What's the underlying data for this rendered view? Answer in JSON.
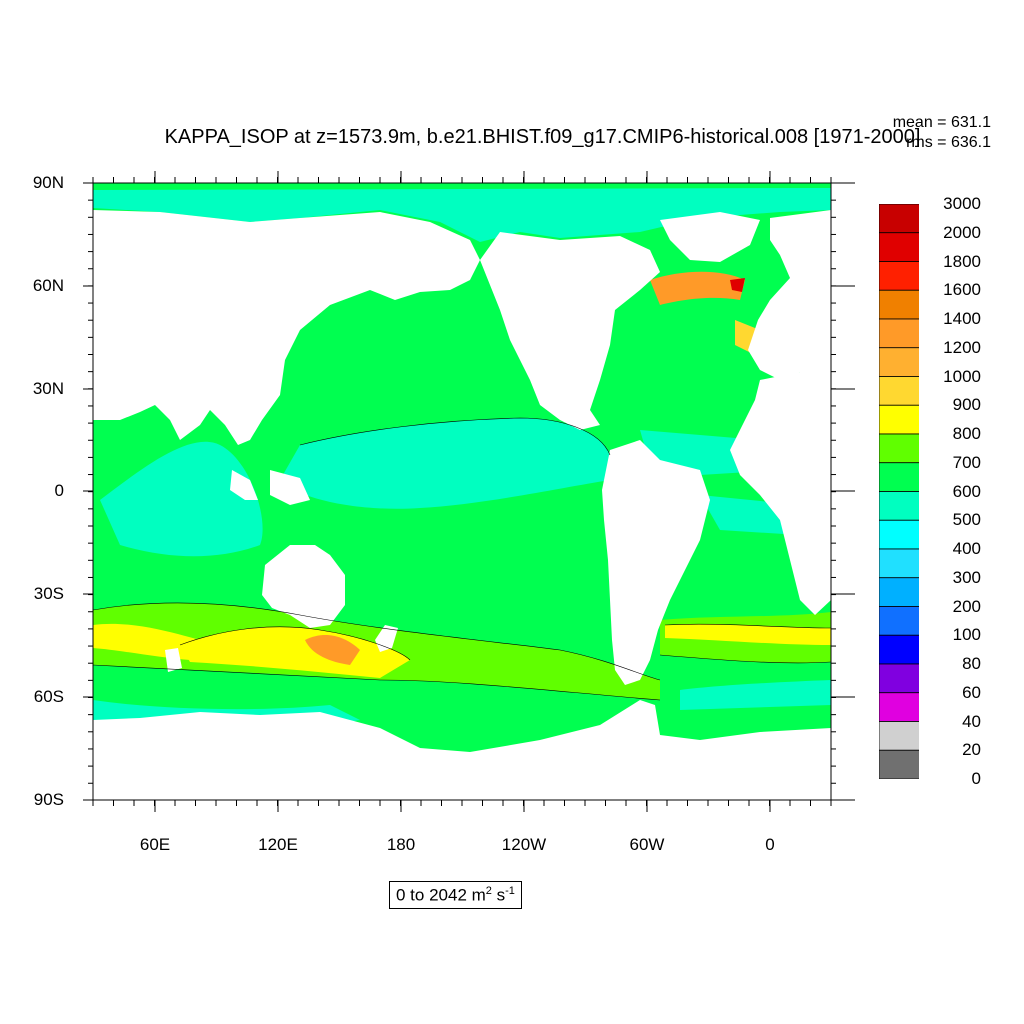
{
  "title": "KAPPA_ISOP at z=1573.9m, b.e21.BHIST.f09_g17.CMIP6-historical.008 [1971-2000]",
  "stats": {
    "mean": "mean = 631.1",
    "rms": "rms = 636.1"
  },
  "range": {
    "text": "0 to 2042 m",
    "unit_sup1": "2",
    "unit_mid": " s",
    "unit_sup2": "-1"
  },
  "axes": {
    "y_ticks": [
      "90N",
      "60N",
      "30N",
      "0",
      "30S",
      "60S",
      "90S"
    ],
    "x_ticks": [
      "60E",
      "120E",
      "180",
      "120W",
      "60W",
      "0"
    ]
  },
  "legend": {
    "labels": [
      "3000",
      "2000",
      "1800",
      "1600",
      "1400",
      "1200",
      "1000",
      "900",
      "800",
      "700",
      "600",
      "500",
      "400",
      "300",
      "200",
      "100",
      "80",
      "60",
      "40",
      "20",
      "0"
    ],
    "colors": [
      "#c80000",
      "#e00000",
      "#ff2000",
      "#f08000",
      "#ff9a28",
      "#ffb030",
      "#ffd830",
      "#ffff00",
      "#60ff00",
      "#00ff50",
      "#00ffc0",
      "#00ffff",
      "#20e0ff",
      "#00b0ff",
      "#1070ff",
      "#0000ff",
      "#8000e0",
      "#e000e0",
      "#d0d0d0",
      "#707070"
    ]
  },
  "colors": {
    "ocean_main": "#00ff50",
    "ocean_low": "#00ffc0",
    "ocean_high": "#60ff00",
    "ocean_peak": "#ffff00",
    "land": "#ffffff"
  }
}
